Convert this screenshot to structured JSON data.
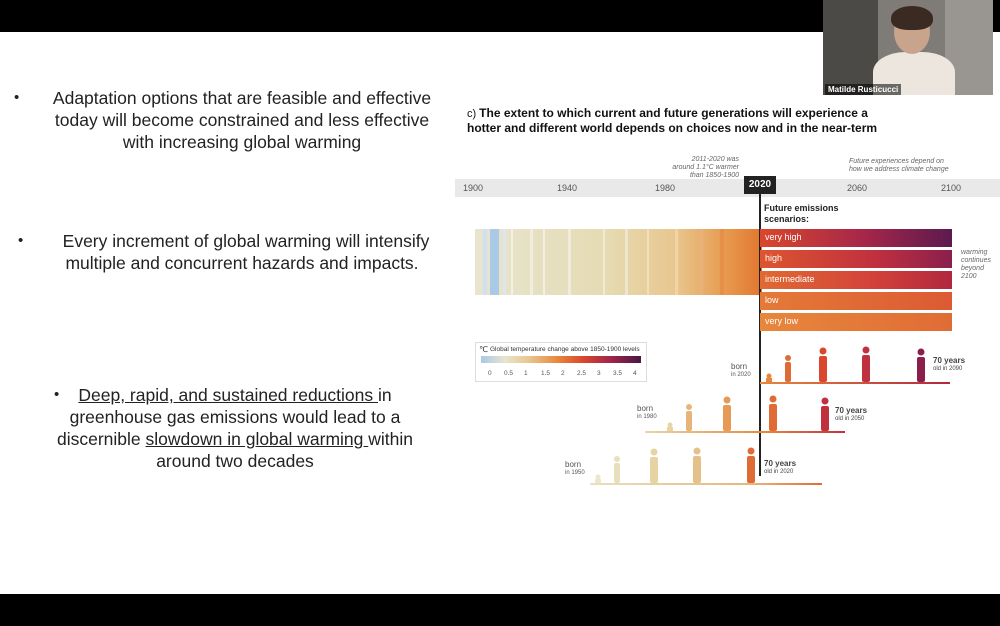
{
  "slide": {
    "bullets": [
      {
        "lines": [
          "Adaptation options that are feasible and effective",
          "today will become constrained and less effective",
          "with increasing global warming"
        ]
      },
      {
        "lines": [
          "Every increment of global warming will intensify",
          "multiple and concurrent hazards and impacts."
        ]
      },
      {
        "line1_underlined": "Deep, rapid, and sustained reductions ",
        "line1_rest": "in",
        "line2": "greenhouse gas emissions would lead to a",
        "line3_pre": "discernible ",
        "line3_underlined": "slowdown in global warming ",
        "line3_post": "within",
        "line4": "around two decades"
      }
    ],
    "bullet_glyph": "•"
  },
  "figure": {
    "panel_label": "c)",
    "title_line1": "The extent to which current and future generations will experience a",
    "title_line2": "hotter and different world depends on choices now and in the near-term",
    "timeline_ticks": [
      "1900",
      "1940",
      "1980",
      "2060",
      "2100"
    ],
    "current_year": "2020",
    "annotation_2011": [
      "2011-2020 was",
      "around 1.1°C warmer",
      "than 1850-1900"
    ],
    "annotation_future": [
      "Future experiences depend on",
      "how we address climate change"
    ],
    "future_label_line1": "Future emissions",
    "future_label_line2": "scenarios:",
    "scenarios": [
      "very high",
      "high",
      "intermediate",
      "low",
      "very low"
    ],
    "warming_note": [
      "warming",
      "continues",
      "beyond",
      "2100"
    ],
    "legend": {
      "icon": "℃",
      "title": "Global temperature change above 1850-1900 levels",
      "ticks": [
        "0",
        "0.5",
        "1",
        "1.5",
        "2",
        "2.5",
        "3",
        "3.5",
        "4"
      ]
    },
    "generations": [
      {
        "born": "born",
        "year": "in 2020",
        "old": "70 years",
        "old_in": "old in 2090"
      },
      {
        "born": "born",
        "year": "in 1980",
        "old": "70 years",
        "old_in": "old in 2050"
      },
      {
        "born": "born",
        "year": "in 1950",
        "old": "70 years",
        "old_in": "old in 2020"
      }
    ],
    "colors": {
      "stripe_cool": "#a9c9e6",
      "stripe_neutral": "#e6ddb8",
      "stripe_warm": "#e48a3c",
      "hot": "#d23a2a",
      "very_hot": "#6b1b4f"
    }
  },
  "video": {
    "participant_name": "Matilde Rusticucci"
  }
}
